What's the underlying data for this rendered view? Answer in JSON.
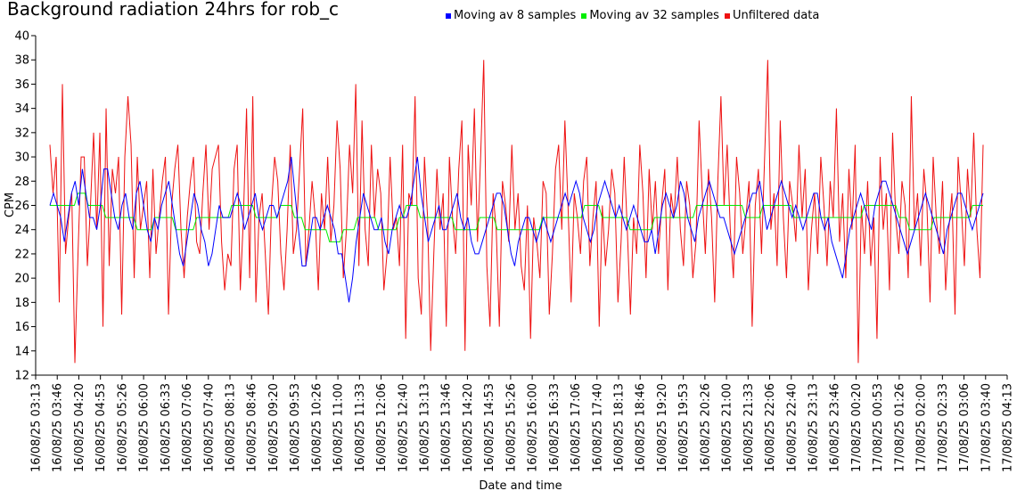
{
  "chart_data": {
    "type": "line",
    "title": "Background radiation 24hrs for rob_c",
    "xlabel": "Date and time",
    "ylabel": "CPM",
    "ylim": [
      12,
      40
    ],
    "yticks": [
      "12",
      "14",
      "16",
      "18",
      "20",
      "22",
      "24",
      "26",
      "28",
      "30",
      "32",
      "34",
      "36",
      "38",
      "40"
    ],
    "xticks": [
      "16/08/25 03:13",
      "16/08/25 03:46",
      "16/08/25 04:20",
      "16/08/25 04:53",
      "16/08/25 05:26",
      "16/08/25 06:00",
      "16/08/25 06:33",
      "16/08/25 07:06",
      "16/08/25 07:40",
      "16/08/25 08:13",
      "16/08/25 08:46",
      "16/08/25 09:20",
      "16/08/25 09:53",
      "16/08/25 10:26",
      "16/08/25 11:00",
      "16/08/25 11:33",
      "16/08/25 12:06",
      "16/08/25 12:40",
      "16/08/25 13:13",
      "16/08/25 13:46",
      "16/08/25 14:20",
      "16/08/25 14:53",
      "16/08/25 15:26",
      "16/08/25 16:00",
      "16/08/25 16:33",
      "16/08/25 17:06",
      "16/08/25 17:40",
      "16/08/25 18:13",
      "16/08/25 18:46",
      "16/08/25 19:20",
      "16/08/25 19:53",
      "16/08/25 20:26",
      "16/08/25 21:00",
      "16/08/25 21:33",
      "16/08/25 22:06",
      "16/08/25 22:40",
      "16/08/25 23:13",
      "16/08/25 23:46",
      "17/08/25 00:20",
      "17/08/25 00:53",
      "17/08/25 01:26",
      "17/08/25 02:00",
      "17/08/25 02:33",
      "17/08/25 03:06",
      "17/08/25 03:40",
      "17/08/25 04:13"
    ],
    "grid": false,
    "legend_position": "top",
    "series": [
      {
        "name": "Moving av 8 samples",
        "color": "#0000ff",
        "values": [
          26,
          27,
          26,
          25,
          23,
          25,
          27,
          28,
          26,
          29,
          27,
          25,
          25,
          24,
          26,
          29,
          29,
          27,
          25,
          24,
          26,
          27,
          25,
          24,
          27,
          28,
          26,
          24,
          23,
          25,
          24,
          26,
          27,
          28,
          26,
          24,
          22,
          21,
          23,
          25,
          27,
          26,
          24,
          23,
          21,
          22,
          24,
          26,
          25,
          25,
          25,
          26,
          27,
          26,
          24,
          25,
          26,
          27,
          25,
          24,
          25,
          26,
          26,
          25,
          26,
          27,
          28,
          30,
          27,
          24,
          21,
          21,
          23,
          25,
          25,
          24,
          25,
          26,
          25,
          24,
          22,
          22,
          20,
          18,
          20,
          23,
          25,
          27,
          26,
          25,
          24,
          24,
          25,
          23,
          22,
          24,
          25,
          26,
          25,
          25,
          26,
          28,
          30,
          27,
          25,
          23,
          24,
          25,
          26,
          24,
          24,
          25,
          26,
          27,
          25,
          24,
          25,
          23,
          22,
          22,
          23,
          24,
          25,
          26,
          27,
          27,
          26,
          24,
          22,
          21,
          23,
          24,
          25,
          25,
          24,
          23,
          24,
          25,
          24,
          23,
          24,
          25,
          26,
          27,
          26,
          27,
          28,
          27,
          25,
          24,
          23,
          24,
          26,
          27,
          28,
          27,
          26,
          25,
          26,
          25,
          24,
          25,
          26,
          25,
          24,
          23,
          23,
          24,
          22,
          24,
          26,
          27,
          26,
          25,
          26,
          28,
          27,
          25,
          24,
          23,
          25,
          26,
          27,
          28,
          27,
          26,
          25,
          25,
          24,
          23,
          22,
          23,
          24,
          25,
          26,
          27,
          27,
          28,
          26,
          24,
          25,
          26,
          27,
          28,
          27,
          26,
          25,
          26,
          25,
          24,
          25,
          26,
          27,
          27,
          25,
          24,
          25,
          23,
          22,
          21,
          20,
          22,
          24,
          25,
          26,
          27,
          26,
          25,
          24,
          26,
          27,
          28,
          28,
          27,
          26,
          25,
          24,
          23,
          22,
          23,
          24,
          25,
          26,
          27,
          26,
          25,
          24,
          23,
          22,
          24,
          25,
          26,
          27,
          27,
          26,
          25,
          24,
          25,
          26,
          27
        ]
      },
      {
        "name": "Moving av 32 samples",
        "color": "#00ee00",
        "values": [
          26,
          26,
          26,
          26,
          26,
          26,
          26,
          26,
          27,
          27,
          27,
          26,
          26,
          26,
          26,
          26,
          25,
          25,
          25,
          25,
          25,
          25,
          25,
          25,
          25,
          24,
          24,
          24,
          24,
          24,
          25,
          25,
          25,
          25,
          25,
          25,
          24,
          24,
          24,
          24,
          24,
          24,
          25,
          25,
          25,
          25,
          25,
          25,
          25,
          25,
          25,
          25,
          26,
          26,
          26,
          26,
          26,
          26,
          26,
          25,
          25,
          25,
          25,
          25,
          25,
          25,
          26,
          26,
          26,
          26,
          25,
          25,
          25,
          24,
          24,
          24,
          24,
          24,
          24,
          24,
          23,
          23,
          23,
          23,
          24,
          24,
          24,
          24,
          25,
          25,
          25,
          25,
          25,
          25,
          24,
          24,
          24,
          24,
          24,
          24,
          25,
          25,
          26,
          26,
          26,
          26,
          25,
          25,
          25,
          25,
          25,
          25,
          25,
          25,
          25,
          25,
          24,
          24,
          24,
          24,
          24,
          24,
          24,
          25,
          25,
          25,
          25,
          25,
          24,
          24,
          24,
          24,
          24,
          24,
          24,
          24,
          24,
          24,
          24,
          24,
          24,
          25,
          25,
          25,
          25,
          25,
          25,
          25,
          25,
          25,
          25,
          25,
          25,
          26,
          26,
          26,
          26,
          26,
          25,
          25,
          25,
          25,
          25,
          25,
          25,
          25,
          24,
          24,
          24,
          24,
          24,
          24,
          24,
          25,
          25,
          25,
          25,
          25,
          25,
          25,
          25,
          25,
          25,
          25,
          25,
          26,
          26,
          26,
          26,
          26,
          26,
          26,
          26,
          26,
          26,
          26,
          26,
          26,
          26,
          25,
          25,
          25,
          25,
          25,
          26,
          26,
          26,
          26,
          26,
          26,
          26,
          26,
          26,
          25,
          25,
          25,
          25,
          25,
          25,
          25,
          25,
          25,
          25,
          25,
          25,
          25,
          25,
          25,
          25,
          25,
          25,
          25,
          25,
          26,
          26,
          26,
          26,
          26,
          26,
          26,
          26,
          26,
          26,
          25,
          25,
          25,
          24,
          24,
          24,
          24,
          24,
          24,
          24,
          25,
          25,
          25,
          25,
          25,
          25,
          25,
          25,
          25,
          25,
          25,
          26,
          26,
          26,
          26
        ]
      },
      {
        "name": "Unfiltered data",
        "color": "#ee1111",
        "values": [
          31,
          27,
          30,
          18,
          36,
          22,
          25,
          27,
          13,
          22,
          30,
          30,
          21,
          26,
          32,
          24,
          32,
          16,
          34,
          21,
          29,
          27,
          30,
          17,
          30,
          35,
          31,
          20,
          30,
          24,
          26,
          28,
          20,
          29,
          22,
          25,
          28,
          30,
          17,
          26,
          29,
          31,
          24,
          20,
          25,
          28,
          30,
          23,
          22,
          27,
          31,
          24,
          29,
          30,
          31,
          23,
          19,
          22,
          21,
          29,
          31,
          19,
          25,
          34,
          20,
          35,
          18,
          25,
          27,
          22,
          17,
          26,
          30,
          28,
          22,
          19,
          24,
          31,
          22,
          24,
          29,
          34,
          21,
          24,
          28,
          25,
          19,
          27,
          24,
          30,
          23,
          26,
          33,
          29,
          20,
          24,
          31,
          27,
          36,
          21,
          33,
          24,
          21,
          31,
          25,
          29,
          27,
          19,
          22,
          30,
          24,
          25,
          21,
          31,
          15,
          27,
          26,
          35,
          20,
          17,
          30,
          25,
          14,
          22,
          29,
          24,
          27,
          16,
          30,
          25,
          22,
          29,
          33,
          14,
          31,
          26,
          34,
          23,
          30,
          38,
          21,
          16,
          27,
          24,
          16,
          28,
          26,
          23,
          31,
          24,
          27,
          21,
          19,
          26,
          15,
          25,
          23,
          20,
          28,
          27,
          17,
          22,
          29,
          31,
          24,
          33,
          26,
          18,
          27,
          25,
          22,
          28,
          30,
          21,
          25,
          28,
          16,
          26,
          21,
          24,
          29,
          27,
          18,
          23,
          30,
          24,
          17,
          25,
          22,
          31,
          27,
          20,
          29,
          24,
          28,
          22,
          26,
          29,
          19,
          27,
          25,
          30,
          24,
          21,
          28,
          26,
          20,
          23,
          33,
          27,
          22,
          29,
          25,
          18,
          28,
          35,
          26,
          31,
          24,
          20,
          30,
          27,
          22,
          25,
          28,
          16,
          26,
          29,
          22,
          30,
          38,
          24,
          27,
          21,
          33,
          25,
          20,
          28,
          26,
          23,
          31,
          25,
          29,
          19,
          24,
          27,
          22,
          30,
          26,
          21,
          28,
          25,
          34,
          23,
          27,
          20,
          29,
          24,
          31,
          13,
          26,
          22,
          28,
          21,
          25,
          15,
          30,
          24,
          27,
          19,
          32,
          25,
          22,
          28,
          26,
          20,
          35,
          24,
          27,
          21,
          29,
          26,
          18,
          30,
          25,
          22,
          28,
          19,
          24,
          27,
          17,
          30,
          26,
          21,
          29,
          25,
          32,
          24,
          20,
          31
        ]
      }
    ]
  }
}
